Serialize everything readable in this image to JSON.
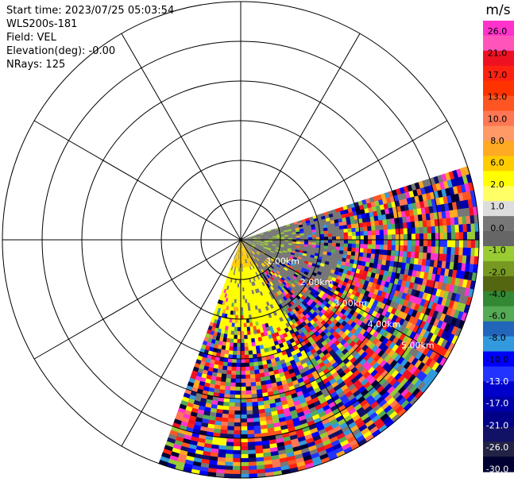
{
  "info": {
    "start_time": "Start time: 2023/07/25 05:03:54",
    "instrument": "WLS200s-181",
    "field": "Field: VEL",
    "elevation": "Elevation(deg): -0.00",
    "nrays": "NRays: 125"
  },
  "range_labels": [
    "1.00km",
    "2.00km",
    "3.00km",
    "4.00km",
    "5.00km"
  ],
  "colorbar": {
    "unit": "m/s",
    "tick_labels": [
      "26.0",
      "21.0",
      "17.0",
      "13.0",
      "10.0",
      "8.0",
      "6.0",
      "2.0",
      "1.0",
      "0.0",
      "-1.0",
      "-2.0",
      "-4.0",
      "-6.0",
      "-8.0",
      "-10.0",
      "-13.0",
      "-17.0",
      "-21.0",
      "-26.0",
      "-30.0"
    ],
    "colors": [
      "#ff33cc",
      "#ff55bb",
      "#ee1122",
      "#ff2211",
      "#ff3300",
      "#ff5522",
      "#ff7755",
      "#ff9966",
      "#ffaa22",
      "#ffcc00",
      "#ffff00",
      "#ffff66",
      "#dddddd",
      "#777777",
      "#666666",
      "#99cc33",
      "#779922",
      "#556611",
      "#338833",
      "#55aa55",
      "#2266bb",
      "#3399dd",
      "#0000ff",
      "#2233ff",
      "#0000cc",
      "#0000aa",
      "#000088",
      "#111166",
      "#222244",
      "#000033"
    ]
  },
  "sweep": {
    "start_azimuth_deg": 72,
    "end_azimuth_deg": 200,
    "n_rays": 125
  }
}
